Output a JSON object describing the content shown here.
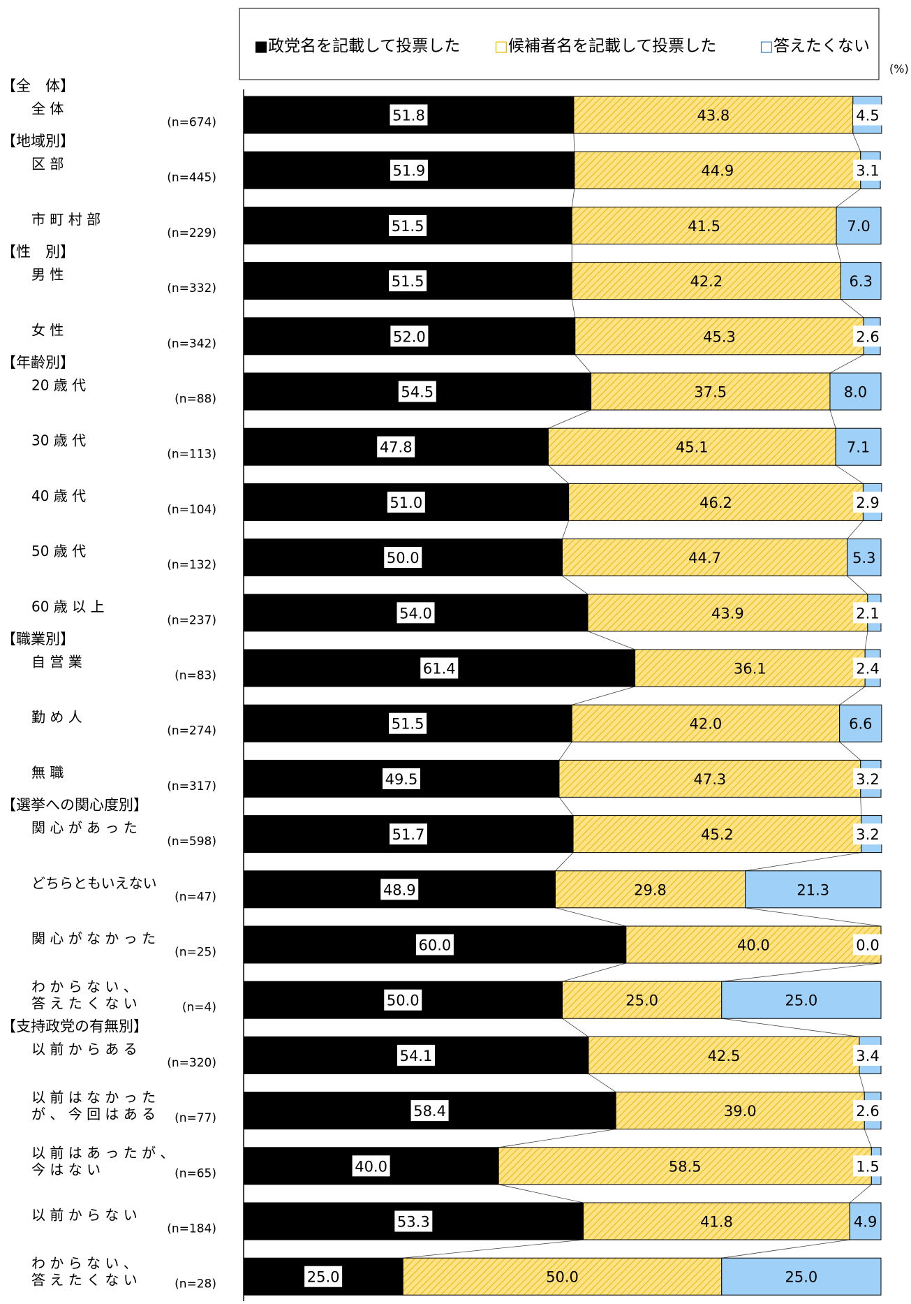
{
  "legend": {
    "items": [
      {
        "marker": "■",
        "label": "政党名を記載して投票した"
      },
      {
        "marker": "□",
        "label": "候補者名を記載して投票した"
      },
      {
        "marker": "□",
        "label": "答えたくない"
      }
    ]
  },
  "unit_label": "(%)",
  "colors": {
    "party": "#000000",
    "candidate_fill": "#fde287",
    "candidate_hatch": "#e8b800",
    "no_answer": "#9fd0f7",
    "label_box": "#ffffff"
  },
  "chart_data": {
    "type": "bar",
    "orientation": "horizontal",
    "stacked": true,
    "xlim": [
      0,
      100
    ],
    "series": [
      {
        "name": "政党名を記載して投票した"
      },
      {
        "name": "候補者名を記載して投票した"
      },
      {
        "name": "答えたくない"
      }
    ],
    "rows": [
      {
        "group": "【全　体】",
        "label": "全 体",
        "n": "(n=674)",
        "values": [
          51.8,
          43.8,
          4.5
        ]
      },
      {
        "group": "【地域別】",
        "label": "区 部",
        "n": "(n=445)",
        "values": [
          51.9,
          44.9,
          3.1
        ]
      },
      {
        "group": null,
        "label": "市 町 村 部",
        "n": "(n=229)",
        "values": [
          51.5,
          41.5,
          7.0
        ]
      },
      {
        "group": "【性　別】",
        "label": "男 性",
        "n": "(n=332)",
        "values": [
          51.5,
          42.2,
          6.3
        ]
      },
      {
        "group": null,
        "label": "女 性",
        "n": "(n=342)",
        "values": [
          52.0,
          45.3,
          2.6
        ]
      },
      {
        "group": "【年齢別】",
        "label": "20 歳 代",
        "n": "(n=88)",
        "values": [
          54.5,
          37.5,
          8.0
        ]
      },
      {
        "group": null,
        "label": "30 歳 代",
        "n": "(n=113)",
        "values": [
          47.8,
          45.1,
          7.1
        ]
      },
      {
        "group": null,
        "label": "40 歳 代",
        "n": "(n=104)",
        "values": [
          51.0,
          46.2,
          2.9
        ]
      },
      {
        "group": null,
        "label": "50 歳 代",
        "n": "(n=132)",
        "values": [
          50.0,
          44.7,
          5.3
        ]
      },
      {
        "group": null,
        "label": "60 歳 以 上",
        "n": "(n=237)",
        "values": [
          54.0,
          43.9,
          2.1
        ]
      },
      {
        "group": "【職業別】",
        "label": "自 営 業",
        "n": "(n=83)",
        "values": [
          61.4,
          36.1,
          2.4
        ]
      },
      {
        "group": null,
        "label": "勤 め 人",
        "n": "(n=274)",
        "values": [
          51.5,
          42.0,
          6.6
        ]
      },
      {
        "group": null,
        "label": "無 職",
        "n": "(n=317)",
        "values": [
          49.5,
          47.3,
          3.2
        ]
      },
      {
        "group": "【選挙への関心度別】",
        "label": "関 心 が あ っ た",
        "n": "(n=598)",
        "values": [
          51.7,
          45.2,
          3.2
        ]
      },
      {
        "group": null,
        "label": "どちらともいえない",
        "n": "(n=47)",
        "values": [
          48.9,
          29.8,
          21.3
        ]
      },
      {
        "group": null,
        "label": "関 心 が な か っ た",
        "n": "(n=25)",
        "values": [
          60.0,
          40.0,
          0.0
        ]
      },
      {
        "group": null,
        "label": "わ か ら な い 、\n答 え た く な い",
        "n": "(n=4)",
        "values": [
          50.0,
          25.0,
          25.0
        ]
      },
      {
        "group": "【支持政党の有無別】",
        "label": "以 前 か ら あ る",
        "n": "(n=320)",
        "values": [
          54.1,
          42.5,
          3.4
        ]
      },
      {
        "group": null,
        "label": "以 前 は な か っ た\nが 、 今 回 は あ る",
        "n": "(n=77)",
        "values": [
          58.4,
          39.0,
          2.6
        ]
      },
      {
        "group": null,
        "label": "以 前 は あ っ た が 、\n今 は な い",
        "n": "(n=65)",
        "values": [
          40.0,
          58.5,
          1.5
        ]
      },
      {
        "group": null,
        "label": "以 前 か ら な い",
        "n": "(n=184)",
        "values": [
          53.3,
          41.8,
          4.9
        ]
      },
      {
        "group": null,
        "label": "わ か ら な い 、\n答 え た く な い",
        "n": "(n=28)",
        "values": [
          25.0,
          50.0,
          25.0
        ]
      }
    ]
  }
}
